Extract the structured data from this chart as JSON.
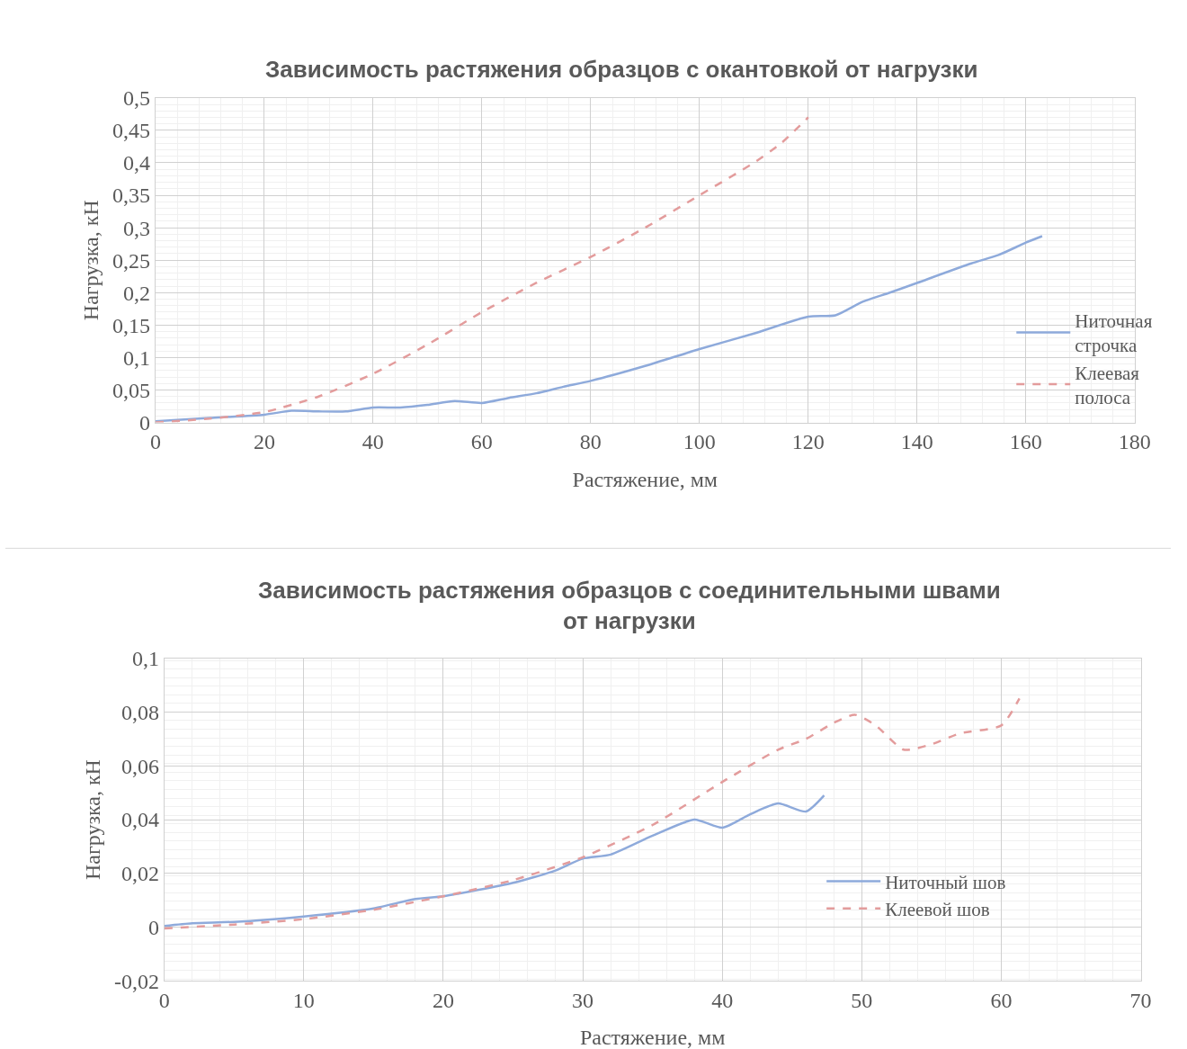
{
  "chart_data": [
    {
      "type": "line",
      "title": "Зависимость растяжения образцов с окантовкой от нагрузки",
      "xlabel": "Растяжение, мм",
      "ylabel": "Нагрузка, кН",
      "xlim": [
        0,
        180
      ],
      "xticks": [
        0,
        20,
        40,
        60,
        80,
        100,
        120,
        140,
        160,
        180
      ],
      "ylim": [
        0,
        0.5
      ],
      "yticks": [
        0,
        {
          "value": 0.05,
          "label": "0,05"
        },
        {
          "value": 0.1,
          "label": "0,1"
        },
        {
          "value": 0.15,
          "label": "0,15"
        },
        {
          "value": 0.2,
          "label": "0,2"
        },
        {
          "value": 0.25,
          "label": "0,25"
        },
        {
          "value": 0.3,
          "label": "0,3"
        },
        {
          "value": 0.35,
          "label": "0,35"
        },
        {
          "value": 0.4,
          "label": "0,4"
        },
        {
          "value": 0.45,
          "label": "0,45"
        },
        {
          "value": 0.5,
          "label": "0,5"
        }
      ],
      "grid": true,
      "legend": "right",
      "series": [
        {
          "name": "Ниточная строчка",
          "color": "#8eaadb",
          "line_style": "solid",
          "x": [
            0,
            10,
            20,
            25,
            30,
            35,
            40,
            45,
            50,
            55,
            60,
            65,
            70,
            75,
            80,
            90,
            100,
            110,
            120,
            125,
            130,
            135,
            140,
            150,
            155,
            160,
            163
          ],
          "values": [
            0.002,
            0.007,
            0.012,
            0.018,
            0.017,
            0.017,
            0.023,
            0.023,
            0.027,
            0.033,
            0.03,
            0.038,
            0.045,
            0.055,
            0.064,
            0.087,
            0.113,
            0.137,
            0.163,
            0.165,
            0.186,
            0.2,
            0.215,
            0.245,
            0.258,
            0.277,
            0.287
          ]
        },
        {
          "name": "Клеевая полоса",
          "color": "#e39c9c",
          "line_style": "dashed",
          "x": [
            0,
            10,
            20,
            30,
            40,
            50,
            60,
            70,
            80,
            90,
            100,
            110,
            115,
            120
          ],
          "values": [
            0,
            0.006,
            0.016,
            0.04,
            0.075,
            0.12,
            0.17,
            0.215,
            0.255,
            0.3,
            0.35,
            0.4,
            0.43,
            0.47
          ]
        }
      ]
    },
    {
      "type": "line",
      "title": "Зависимость растяжения образцов с соединительными швами от нагрузки",
      "xlabel": "Растяжение, мм",
      "ylabel": "Нагрузка, кН",
      "xlim": [
        0,
        70
      ],
      "xticks": [
        0,
        10,
        20,
        30,
        40,
        50,
        60,
        70
      ],
      "ylim": [
        -0.02,
        0.1
      ],
      "yticks": [
        {
          "value": -0.02,
          "label": "-0,02"
        },
        0,
        {
          "value": 0.02,
          "label": "0,02"
        },
        {
          "value": 0.04,
          "label": "0,04"
        },
        {
          "value": 0.06,
          "label": "0,06"
        },
        {
          "value": 0.08,
          "label": "0,08"
        },
        {
          "value": 0.1,
          "label": "0,1"
        }
      ],
      "grid": true,
      "legend": "bottom right",
      "series": [
        {
          "name": "Ниточный шов",
          "color": "#8eaadb",
          "line_style": "solid",
          "x": [
            0,
            2,
            5,
            10,
            15,
            18,
            20,
            25,
            28,
            30,
            32,
            35,
            38,
            40,
            42,
            44,
            46,
            47.3
          ],
          "values": [
            0.0005,
            0.0015,
            0.002,
            0.004,
            0.007,
            0.0105,
            0.0115,
            0.0165,
            0.021,
            0.0255,
            0.027,
            0.034,
            0.04,
            0.037,
            0.042,
            0.046,
            0.043,
            0.049
          ]
        },
        {
          "name": "Клеевой шов",
          "color": "#e39c9c",
          "line_style": "dashed",
          "x": [
            0,
            5,
            10,
            15,
            20,
            25,
            30,
            35,
            40,
            44,
            46,
            48,
            49.5,
            51,
            53,
            55,
            57,
            60,
            61.3
          ],
          "values": [
            -0.0005,
            0.001,
            0.003,
            0.0065,
            0.0115,
            0.0175,
            0.026,
            0.038,
            0.054,
            0.066,
            0.07,
            0.076,
            0.079,
            0.075,
            0.066,
            0.068,
            0.072,
            0.075,
            0.085
          ]
        }
      ]
    }
  ]
}
